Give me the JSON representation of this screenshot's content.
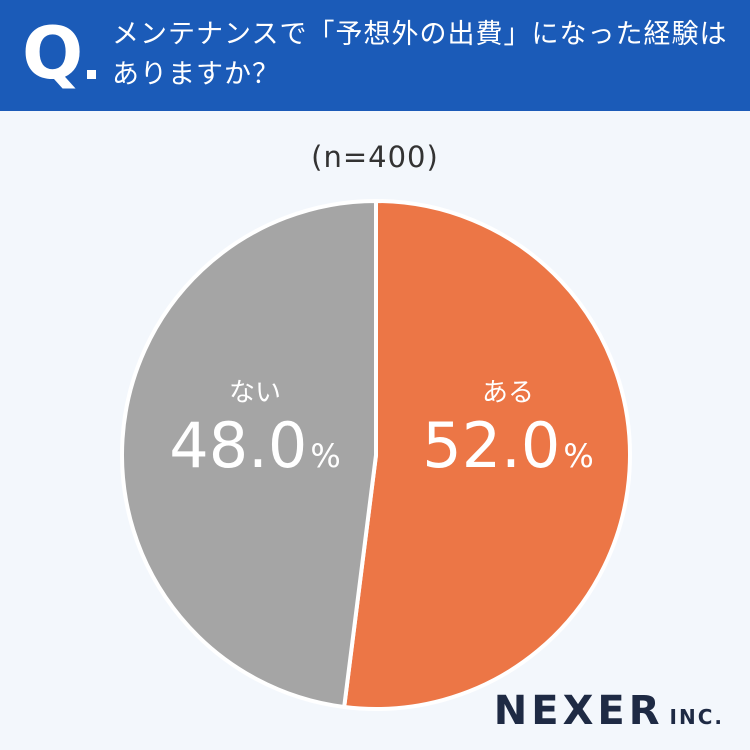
{
  "header": {
    "q_mark": "Q",
    "question_line1": "メンテナンスで「予想外の出費」になった経験は",
    "question_line2": "ありますか？"
  },
  "sample_size": "(n=400)",
  "chart_data": {
    "type": "pie",
    "title": "",
    "start": "top",
    "direction": "clockwise",
    "slices": [
      {
        "label": "ある",
        "value": 52.0,
        "display": "52.0",
        "unit": "%",
        "color": "#ec7646"
      },
      {
        "label": "ない",
        "value": 48.0,
        "display": "48.0",
        "unit": "%",
        "color": "#a5a5a5"
      }
    ]
  },
  "logo": {
    "main": "NEXER",
    "suffix": "INC."
  }
}
